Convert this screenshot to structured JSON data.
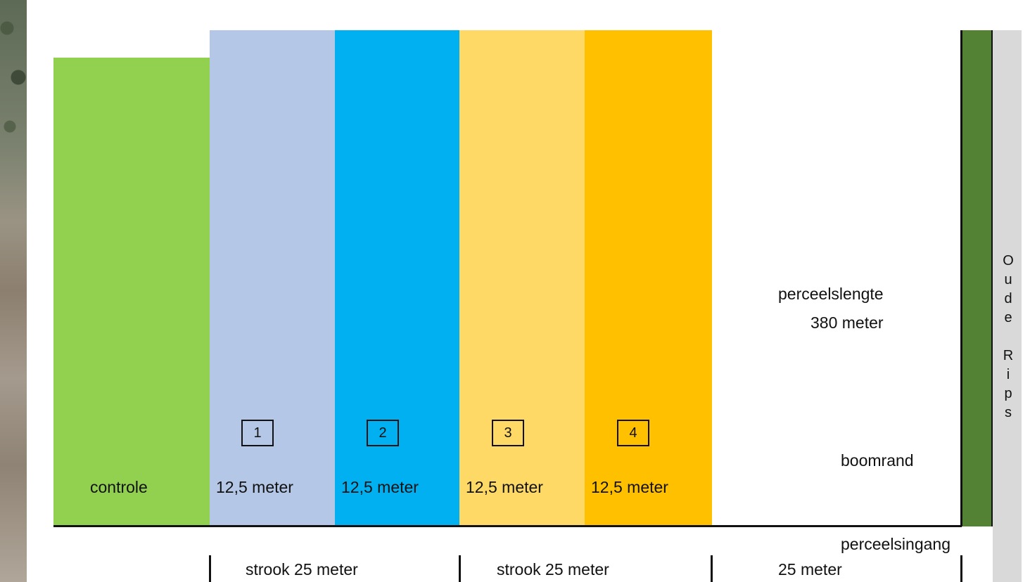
{
  "labels": {
    "controle": "controle",
    "strip_1_width": "12,5 meter",
    "strip_2_width": "12,5 meter",
    "strip_3_width": "12,5 meter",
    "strip_4_width": "12,5 meter",
    "perceelslengte": "perceelslengte",
    "perceelslengte_value": "380 meter",
    "boomrand": "boomrand",
    "perceelsingang": "perceelsingang",
    "strook_1": "strook 25 meter",
    "strook_2": "strook 25 meter",
    "rest": "25 meter"
  },
  "strip_numbers": [
    "1",
    "2",
    "3",
    "4"
  ],
  "side_label_chars": [
    "O",
    "u",
    "d",
    "e",
    "",
    "R",
    "i",
    "p",
    "s"
  ],
  "colors": {
    "controle": "#92d050",
    "strip_1": "#b4c7e7",
    "strip_2": "#00b0f0",
    "strip_3": "#ffd966",
    "strip_4": "#ffc000",
    "tree_border": "#548235",
    "road": "#d9d9d9"
  }
}
